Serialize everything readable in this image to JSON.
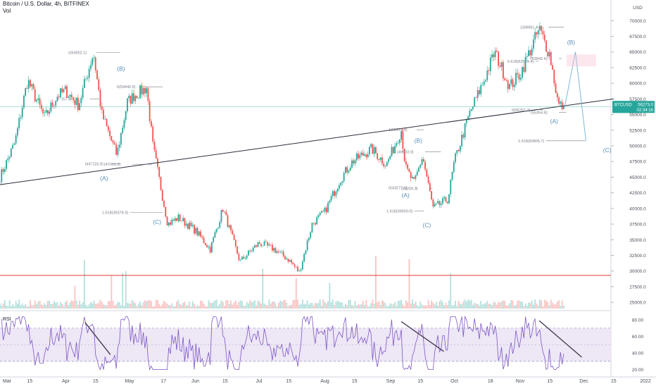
{
  "header": {
    "title": "Bitcoin / U.S. Dollar, 4h, BITFINEX",
    "volume_label": "Vol"
  },
  "rsi": {
    "label": "RSI",
    "ticks": [
      "80.00",
      "60.00",
      "40.00",
      "20.00"
    ]
  },
  "price_axis": {
    "unit": "USD",
    "ticks": [
      "70000.0",
      "67500.0",
      "65000.0",
      "62500.0",
      "60000.0",
      "57500.0",
      "55000.0",
      "52500.0",
      "50000.0",
      "47500.0",
      "45000.0",
      "42500.0",
      "40000.0",
      "37500.0",
      "35000.0",
      "32500.0",
      "30000.0",
      "27500.0",
      "25000.0"
    ],
    "badge_symbol": "BTCUSD",
    "badge_price": "56273.0",
    "badge_time": "02:34:16",
    "badge_color": "#26a69a"
  },
  "time_axis": {
    "ticks": [
      "Mar",
      "15",
      "Apr",
      "15",
      "May",
      "17",
      "Jun",
      "15",
      "Jul",
      "15",
      "Aug",
      "15",
      "Sep",
      "15",
      "Oct",
      "18",
      "Nov",
      "15",
      "Dec",
      "15",
      "2022"
    ]
  },
  "colors": {
    "up": "#26a69a",
    "down": "#ef5350",
    "rsi_line": "#7e57c2",
    "rsi_band": "#ede7f6",
    "wave": "#5b8fb9",
    "trendline": "#2a2e39",
    "support": "#e53935"
  },
  "annotations": {
    "fib_labels": [
      "1(64902.1)",
      "0(59440.5)",
      "(57.4)",
      "0(47115.0)",
      "(47061.2)",
      "1.618(39378.4)",
      "1(52574.4)",
      "(49033.9)",
      "0(43277.1)",
      "(43209.3)",
      "1.618(39600.0)",
      "1(68961.4)",
      "0.618(63514.4)",
      "(63942.6)",
      "0(55751.7)",
      "(55354.8)",
      "1.618(50806.7)"
    ],
    "waves": [
      "(B)",
      "(A)",
      "(C)",
      "(A)",
      "(B)",
      "(C)",
      "(A)",
      "(B)",
      "(C)"
    ]
  },
  "chart_data": [
    {
      "type": "candlestick",
      "title": "Bitcoin / U.S. Dollar, 4h, BITFINEX",
      "ylabel": "USD",
      "ylim": [
        24000,
        71500
      ],
      "x_ticks": [
        "Mar",
        "15",
        "Apr",
        "15",
        "May",
        "17",
        "Jun",
        "15",
        "Jul",
        "15",
        "Aug",
        "15",
        "Sep",
        "15",
        "Oct",
        "18",
        "Nov",
        "15",
        "Dec",
        "15",
        "2022"
      ],
      "last_price": 56273.0,
      "support_level": 29300,
      "trendline": {
        "from": [
          "Mar",
          43800
        ],
        "to": [
          "Dec 15",
          57500
        ]
      },
      "close_path": [
        [
          "Mar 1",
          45000
        ],
        [
          "Mar 8",
          50500
        ],
        [
          "Mar 14",
          60500
        ],
        [
          "Mar 22",
          54500
        ],
        [
          "Mar 28",
          58000
        ],
        [
          "Apr 1",
          58800
        ],
        [
          "Apr 7",
          56500
        ],
        [
          "Apr 14",
          64900
        ],
        [
          "Apr 18",
          55000
        ],
        [
          "Apr 25",
          48500
        ],
        [
          "Apr 30",
          57000
        ],
        [
          "May 3",
          58000
        ],
        [
          "May 9",
          59300
        ],
        [
          "May 12",
          50000
        ],
        [
          "May 19",
          37500
        ],
        [
          "May 24",
          38500
        ],
        [
          "Jun 1",
          36500
        ],
        [
          "Jun 8",
          33500
        ],
        [
          "Jun 14",
          40000
        ],
        [
          "Jun 22",
          31500
        ],
        [
          "Jul 1",
          34500
        ],
        [
          "Jul 8",
          33500
        ],
        [
          "Jul 15",
          31800
        ],
        [
          "Jul 20",
          29800
        ],
        [
          "Jul 26",
          37500
        ],
        [
          "Aug 1",
          39500
        ],
        [
          "Aug 8",
          44500
        ],
        [
          "Aug 14",
          47500
        ],
        [
          "Aug 23",
          49500
        ],
        [
          "Aug 30",
          47000
        ],
        [
          "Sep 6",
          52500
        ],
        [
          "Sep 8",
          46500
        ],
        [
          "Sep 12",
          44000
        ],
        [
          "Sep 16",
          48300
        ],
        [
          "Sep 21",
          40000
        ],
        [
          "Sep 28",
          41500
        ],
        [
          "Oct 1",
          47500
        ],
        [
          "Oct 8",
          55000
        ],
        [
          "Oct 15",
          60500
        ],
        [
          "Oct 20",
          65000
        ],
        [
          "Oct 27",
          59500
        ],
        [
          "Nov 1",
          61500
        ],
        [
          "Nov 10",
          68700
        ],
        [
          "Nov 15",
          64500
        ],
        [
          "Nov 19",
          56500
        ],
        [
          "Nov 22",
          56273
        ]
      ],
      "projection": [
        [
          "Nov 22",
          56273
        ],
        [
          "Nov 27",
          65000
        ],
        [
          "Dec 2",
          50800
        ]
      ]
    },
    {
      "type": "line",
      "title": "RSI",
      "ylim": [
        18,
        86
      ],
      "bands": [
        30,
        70
      ],
      "ticks": [
        80,
        60,
        40,
        20
      ]
    }
  ]
}
